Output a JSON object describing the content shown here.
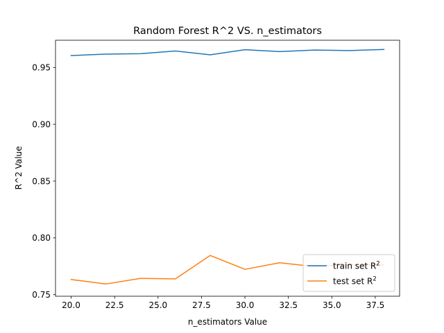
{
  "chart_data": {
    "type": "line",
    "title": "Random Forest R^2 VS. n_estimators",
    "xlabel": "n_estimators Value",
    "ylabel": "R^2 Value",
    "xlim": [
      19.1,
      38.9
    ],
    "ylim": [
      0.7486,
      0.974
    ],
    "xticks": [
      20.0,
      22.5,
      25.0,
      27.5,
      30.0,
      32.5,
      35.0,
      37.5
    ],
    "xtick_labels": [
      "20.0",
      "22.5",
      "25.0",
      "27.5",
      "30.0",
      "32.5",
      "35.0",
      "37.5"
    ],
    "yticks": [
      0.75,
      0.8,
      0.85,
      0.9,
      0.95
    ],
    "ytick_labels": [
      "0.75",
      "0.80",
      "0.85",
      "0.90",
      "0.95"
    ],
    "grid": false,
    "legend_position": "lower-right",
    "x": [
      20,
      22,
      24,
      26,
      28,
      30,
      32,
      34,
      36,
      38
    ],
    "series": [
      {
        "name": "train set R",
        "name_sup": "2",
        "color": "#1f77b4",
        "values": [
          0.9605,
          0.9618,
          0.9622,
          0.9645,
          0.9612,
          0.9657,
          0.964,
          0.9654,
          0.9649,
          0.9659
        ]
      },
      {
        "name": "test set R",
        "name_sup": "2",
        "color": "#ff7f0e",
        "values": [
          0.7633,
          0.7594,
          0.7643,
          0.7639,
          0.7845,
          0.7723,
          0.7781,
          0.7747,
          0.7765,
          0.776
        ]
      }
    ]
  }
}
